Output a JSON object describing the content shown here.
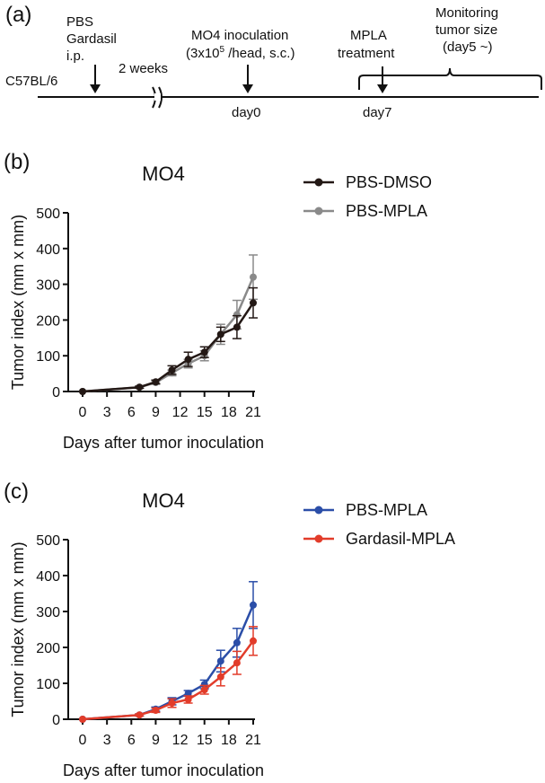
{
  "timeline": {
    "panel_label": "(a)",
    "strain": "C57BL/6",
    "step1": [
      "PBS",
      "Gardasil",
      "i.p."
    ],
    "gap": "2 weeks",
    "inoculation": [
      "MO4 inoculation",
      "(3x10",
      "5",
      " /head, s.c.)"
    ],
    "day0": "day0",
    "treatment": [
      "MPLA",
      "treatment"
    ],
    "day7": "day7",
    "monitoring": [
      "Monitoring",
      "tumor size",
      "(day5 ~)"
    ]
  },
  "chart_data": [
    {
      "panel_label": "(b)",
      "type": "line",
      "title": "MO4",
      "xlabel": "Days after tumor inoculation",
      "ylabel": "Tumor index (mm x mm)",
      "xlim": [
        0,
        21
      ],
      "ylim": [
        0,
        500
      ],
      "xticks": [
        0,
        3,
        6,
        9,
        12,
        15,
        18,
        21
      ],
      "yticks": [
        0,
        100,
        200,
        300,
        400,
        500
      ],
      "legend_position": "right",
      "series": [
        {
          "name": "PBS-MPLA",
          "color": "#8a8a8a",
          "x": [
            0,
            7,
            9,
            11,
            13,
            15,
            17,
            19,
            21
          ],
          "y": [
            0,
            12,
            25,
            52,
            78,
            100,
            160,
            215,
            320
          ],
          "err": [
            0,
            3,
            5,
            8,
            12,
            14,
            28,
            40,
            62
          ]
        },
        {
          "name": "PBS-DMSO",
          "color": "#231815",
          "x": [
            0,
            7,
            9,
            11,
            13,
            15,
            17,
            19,
            21
          ],
          "y": [
            0,
            12,
            27,
            60,
            90,
            110,
            160,
            180,
            248
          ],
          "err": [
            0,
            3,
            5,
            12,
            20,
            15,
            20,
            32,
            42
          ]
        }
      ]
    },
    {
      "panel_label": "(c)",
      "type": "line",
      "title": "MO4",
      "xlabel": "Days after tumor inoculation",
      "ylabel": "Tumor index (mm x mm)",
      "xlim": [
        0,
        21
      ],
      "ylim": [
        0,
        500
      ],
      "xticks": [
        0,
        3,
        6,
        9,
        12,
        15,
        18,
        21
      ],
      "yticks": [
        0,
        100,
        200,
        300,
        400,
        500
      ],
      "legend_position": "right",
      "series": [
        {
          "name": "PBS-MPLA",
          "color": "#2b4ea8",
          "x": [
            0,
            7,
            9,
            11,
            13,
            15,
            17,
            19,
            21
          ],
          "y": [
            0,
            12,
            28,
            50,
            72,
            97,
            162,
            213,
            318
          ],
          "err": [
            0,
            3,
            6,
            10,
            8,
            12,
            30,
            40,
            65
          ]
        },
        {
          "name": "Gardasil-MPLA",
          "color": "#e23c2a",
          "x": [
            0,
            7,
            9,
            11,
            13,
            15,
            17,
            19,
            21
          ],
          "y": [
            0,
            12,
            25,
            45,
            55,
            82,
            118,
            157,
            218
          ],
          "err": [
            0,
            3,
            6,
            12,
            10,
            12,
            25,
            32,
            40
          ]
        }
      ]
    }
  ]
}
